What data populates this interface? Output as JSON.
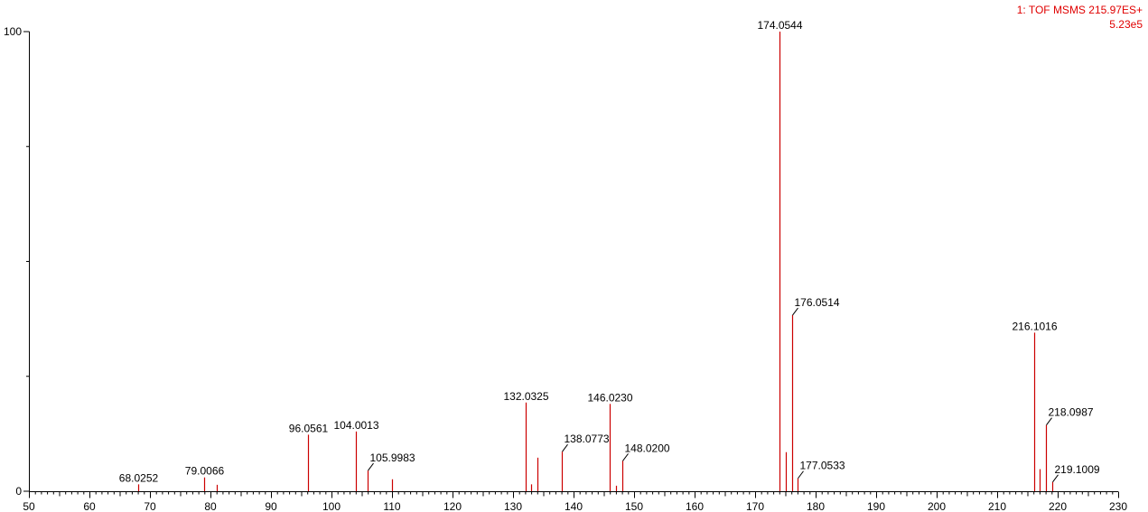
{
  "header": {
    "experiment": "1: TOF MSMS 215.97ES+",
    "intensity": "5.23e5"
  },
  "chart_data": {
    "type": "bar",
    "title": "1: TOF MSMS 215.97ES+",
    "xlabel": "",
    "ylabel": "",
    "xlim": [
      50,
      230
    ],
    "ylim": [
      0,
      100
    ],
    "x_ticks": [
      50,
      60,
      70,
      80,
      90,
      100,
      110,
      120,
      130,
      140,
      150,
      160,
      170,
      180,
      190,
      200,
      210,
      220,
      230
    ],
    "y_ticks": [
      0,
      100
    ],
    "base_peak_intensity": "5.23e5",
    "peaks": [
      {
        "mz": 68.0252,
        "intensity": 1.5,
        "label": "68.0252"
      },
      {
        "mz": 79.0066,
        "intensity": 3.0,
        "label": "79.0066"
      },
      {
        "mz": 81.0,
        "intensity": 1.4
      },
      {
        "mz": 96.0561,
        "intensity": 12.3,
        "label": "96.0561"
      },
      {
        "mz": 104.0013,
        "intensity": 13.0,
        "label": "104.0013"
      },
      {
        "mz": 105.9983,
        "intensity": 4.5,
        "label": "105.9983"
      },
      {
        "mz": 110.0,
        "intensity": 2.6
      },
      {
        "mz": 132.0325,
        "intensity": 19.3,
        "label": "132.0325"
      },
      {
        "mz": 133.0,
        "intensity": 1.5
      },
      {
        "mz": 134.0,
        "intensity": 7.3
      },
      {
        "mz": 138.0773,
        "intensity": 8.6,
        "label": "138.0773"
      },
      {
        "mz": 146.023,
        "intensity": 19.0,
        "label": "146.0230"
      },
      {
        "mz": 147.0,
        "intensity": 1.2
      },
      {
        "mz": 148.02,
        "intensity": 6.6,
        "label": "148.0200"
      },
      {
        "mz": 174.0544,
        "intensity": 100,
        "label": "174.0544"
      },
      {
        "mz": 175.0,
        "intensity": 8.5
      },
      {
        "mz": 176.0514,
        "intensity": 38.3,
        "label": "176.0514"
      },
      {
        "mz": 177.0533,
        "intensity": 2.8,
        "label": "177.0533"
      },
      {
        "mz": 216.1016,
        "intensity": 34.5,
        "label": "216.1016"
      },
      {
        "mz": 217.0,
        "intensity": 4.8
      },
      {
        "mz": 218.0987,
        "intensity": 14.4,
        "label": "218.0987"
      },
      {
        "mz": 219.1009,
        "intensity": 2.0,
        "label": "219.1009"
      }
    ],
    "colors": {
      "peak": "#cc0000",
      "header": "#e00000",
      "axis": "#000000"
    }
  }
}
